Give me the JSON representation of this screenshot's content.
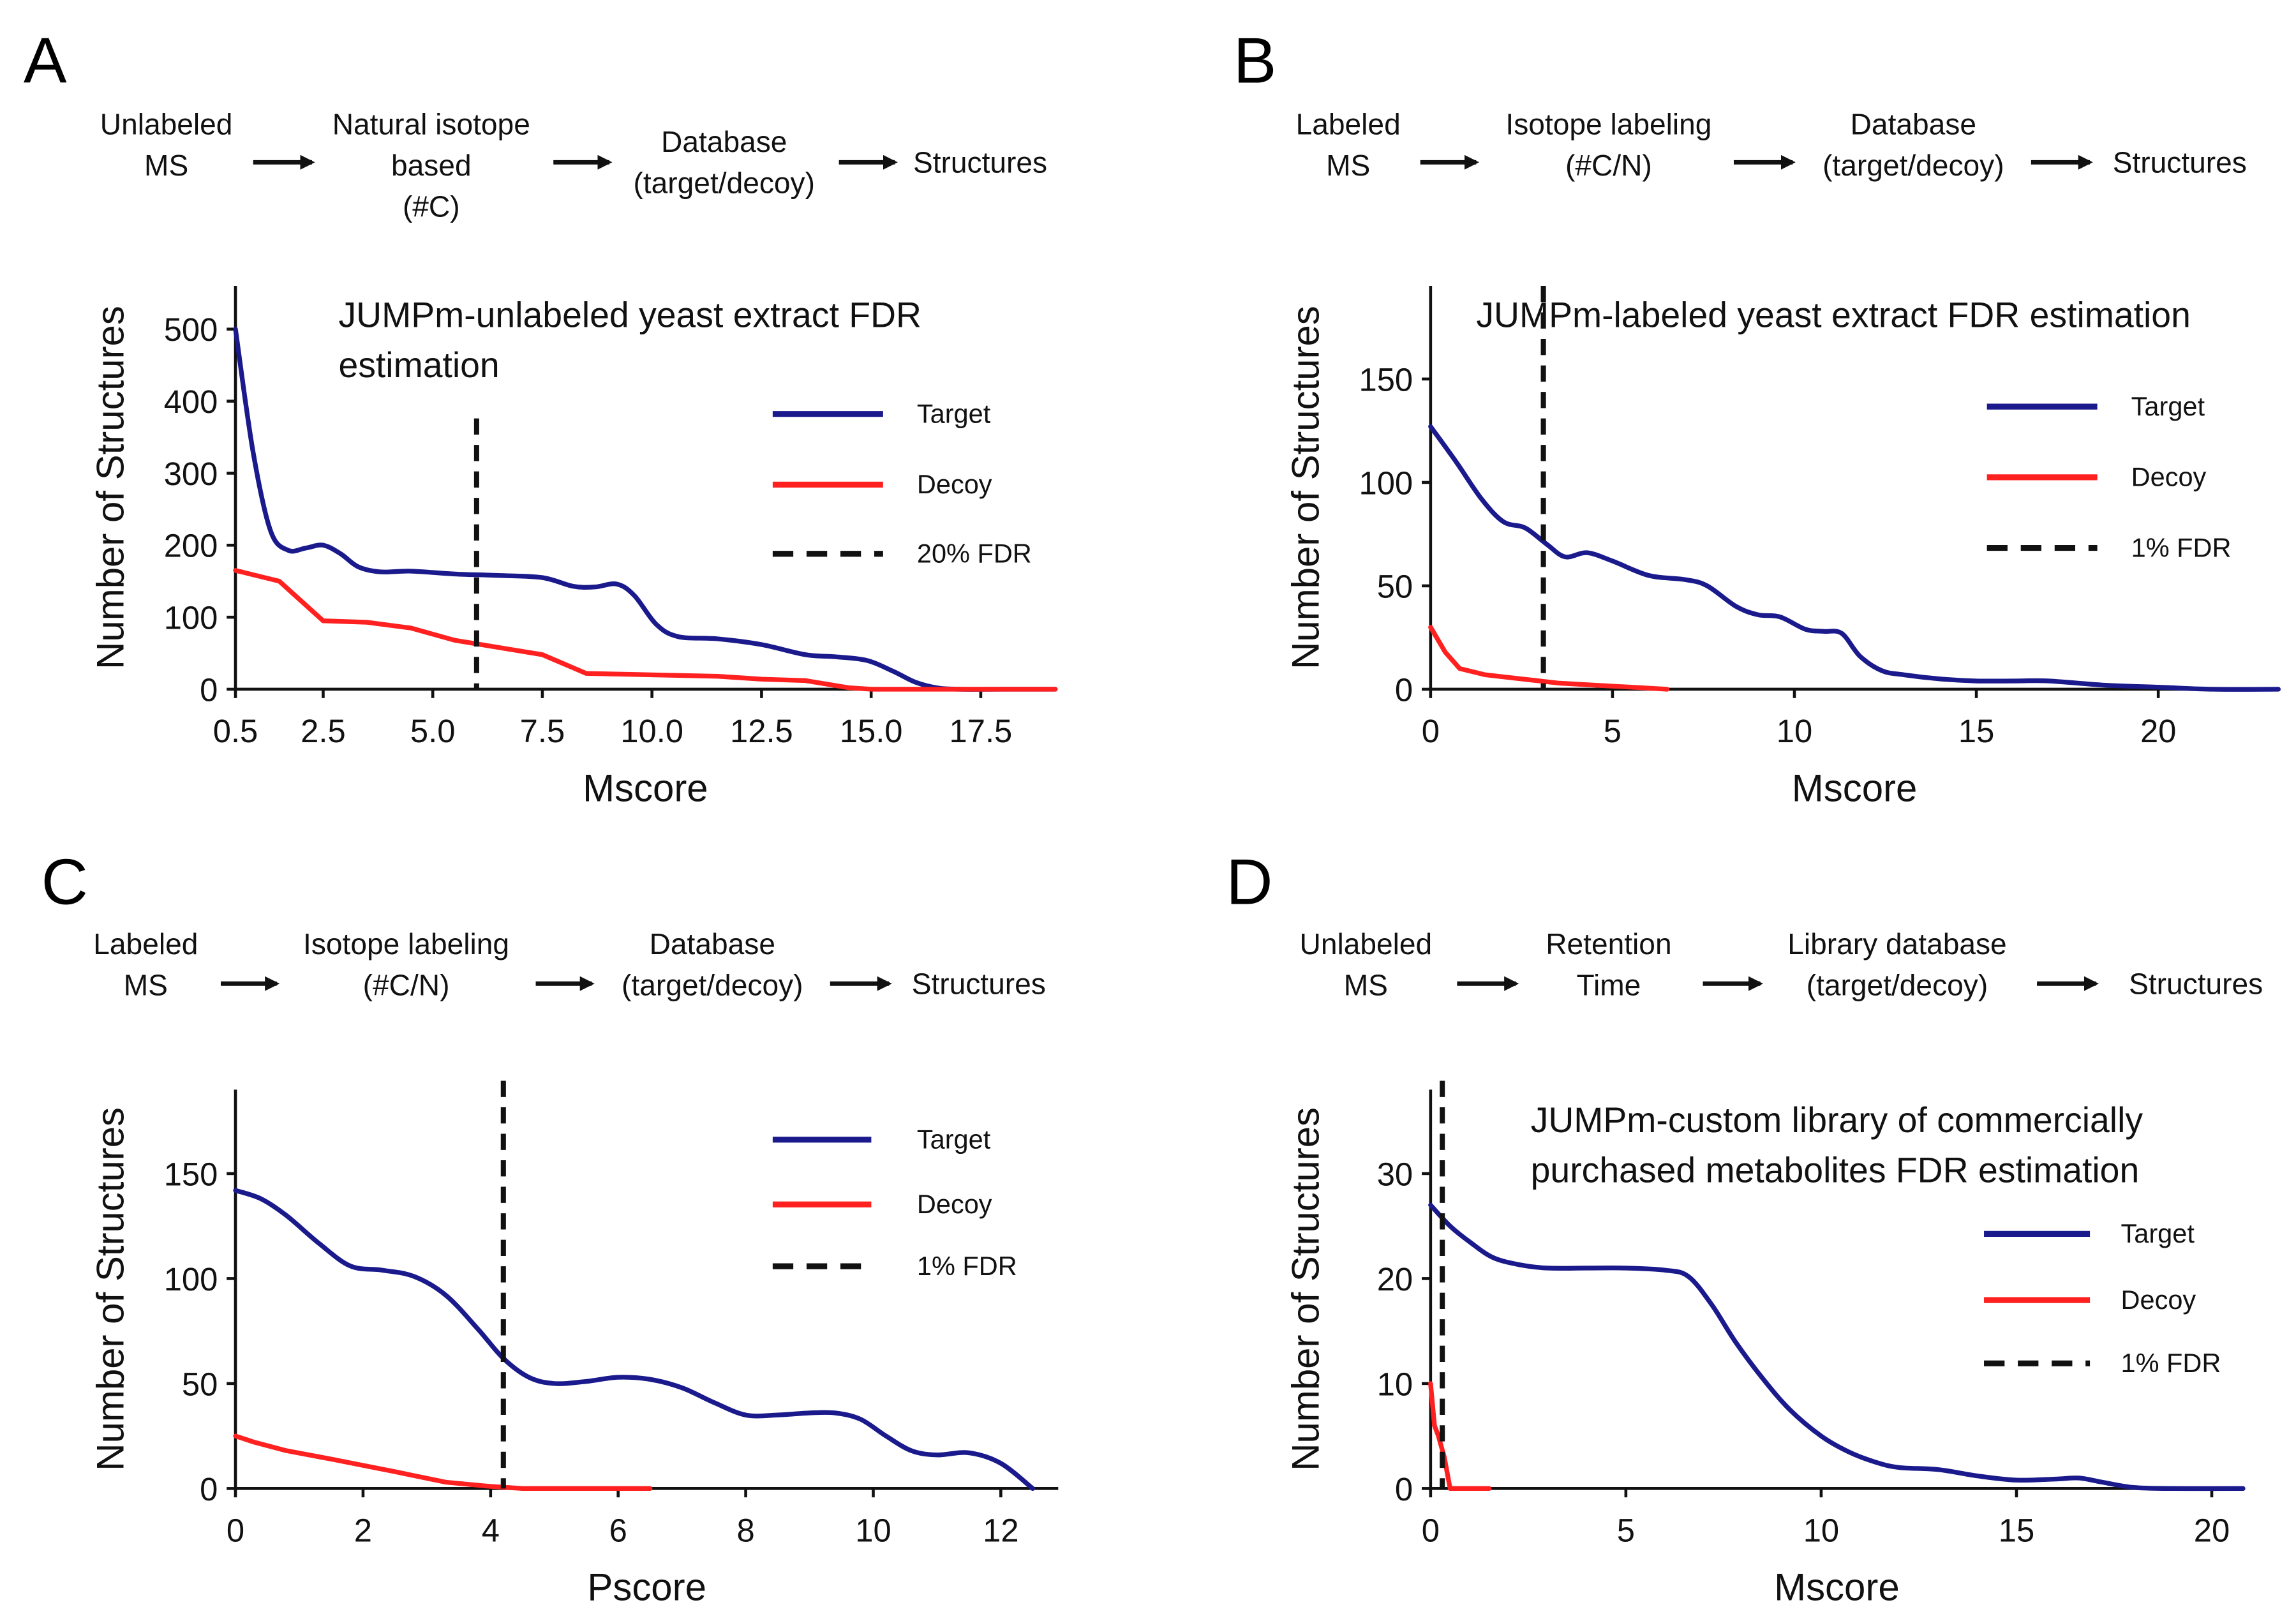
{
  "panels": [
    {
      "letter": "A",
      "workflow": [
        {
          "lines": [
            "Unlabeled",
            "MS"
          ]
        },
        {
          "lines": [
            "Natural isotope",
            "based",
            "(#C)"
          ]
        },
        {
          "lines": [
            "Database",
            "(target/decoy)"
          ]
        },
        {
          "lines": [
            "Structures"
          ]
        }
      ],
      "chart_data": {
        "type": "line",
        "title": [
          "JUMPm-unlabeled yeast extract FDR",
          "estimation"
        ],
        "xlabel": "Mscore",
        "ylabel": "Number of Structures",
        "xlim": [
          0.5,
          19.2
        ],
        "ylim": [
          0,
          560
        ],
        "xticks": [
          0.5,
          2.5,
          5.0,
          7.5,
          10.0,
          12.5,
          15.0,
          17.5
        ],
        "xtick_labels": [
          "0.5",
          "2.5",
          "5.0",
          "7.5",
          "10.0",
          "12.5",
          "15.0",
          "17.5"
        ],
        "yticks": [
          0,
          100,
          200,
          300,
          400,
          500
        ],
        "ytick_labels": [
          "0",
          "100",
          "200",
          "300",
          "400",
          "500"
        ],
        "threshold": 6.0,
        "series": [
          {
            "name": "Target",
            "color": "#1a1a8c",
            "smooth": true,
            "x": [
              0.5,
              0.9,
              1.3,
              1.7,
              2.1,
              2.5,
              2.9,
              3.3,
              3.8,
              4.5,
              5.5,
              6.5,
              7.5,
              8.2,
              8.7,
              9.2,
              9.6,
              10.1,
              10.6,
              11.5,
              12.5,
              13.5,
              14.2,
              14.9,
              15.5,
              16.0,
              16.5,
              17.0,
              18.0,
              19.2
            ],
            "y": [
              500,
              330,
              220,
              193,
              196,
              200,
              188,
              170,
              163,
              164,
              160,
              158,
              155,
              143,
              142,
              146,
              130,
              90,
              73,
              70,
              62,
              48,
              45,
              40,
              25,
              10,
              2,
              0,
              0,
              0
            ]
          },
          {
            "name": "Decoy",
            "color": "#ff2020",
            "smooth": false,
            "x": [
              0.5,
              1.5,
              2.5,
              3.5,
              4.5,
              5.5,
              6.5,
              7.5,
              8.5,
              10.0,
              11.5,
              12.5,
              13.5,
              14.5,
              15.0,
              16.0,
              19.2
            ],
            "y": [
              165,
              150,
              95,
              93,
              85,
              68,
              58,
              48,
              22,
              20,
              18,
              14,
              12,
              2,
              0,
              0,
              0
            ]
          }
        ],
        "legend": [
          {
            "label": "Target",
            "style": "solid",
            "color": "#1a1a8c"
          },
          {
            "label": "Decoy",
            "style": "solid",
            "color": "#ff2020"
          },
          {
            "label": "20% FDR",
            "style": "dashed",
            "color": "#111111"
          }
        ]
      }
    },
    {
      "letter": "B",
      "workflow": [
        {
          "lines": [
            "Labeled",
            "MS"
          ]
        },
        {
          "lines": [
            "Isotope labeling",
            "(#C/N)"
          ]
        },
        {
          "lines": [
            "Database",
            "(target/decoy)"
          ]
        },
        {
          "lines": [
            "Structures"
          ]
        }
      ],
      "chart_data": {
        "type": "line",
        "title": [
          "JUMPm-labeled yeast extract FDR estimation"
        ],
        "xlabel": "Mscore",
        "ylabel": "Number of Structures",
        "xlim": [
          0,
          23.3
        ],
        "ylim": [
          0,
          195
        ],
        "xticks": [
          0,
          5,
          10,
          15,
          20
        ],
        "xtick_labels": [
          "0",
          "5",
          "10",
          "15",
          "20"
        ],
        "yticks": [
          0,
          50,
          100,
          150
        ],
        "ytick_labels": [
          "0",
          "50",
          "100",
          "150"
        ],
        "threshold": 3.1,
        "series": [
          {
            "name": "Target",
            "color": "#1a1a8c",
            "smooth": true,
            "x": [
              0,
              0.7,
              1.4,
              2.0,
              2.6,
              3.2,
              3.7,
              4.3,
              5.0,
              6.0,
              7.0,
              7.6,
              8.4,
              9.0,
              9.6,
              10.3,
              10.8,
              11.3,
              11.8,
              12.4,
              13.0,
              14.0,
              15.0,
              16.0,
              17.0,
              18.5,
              20.0,
              21.5,
              23.3
            ],
            "y": [
              127,
              110,
              92,
              81,
              78,
              70,
              64,
              66,
              62,
              55,
              53,
              50,
              40,
              36,
              35,
              29,
              28,
              27,
              16,
              9,
              7,
              5,
              4,
              4,
              4,
              2,
              1,
              0,
              0
            ]
          },
          {
            "name": "Decoy",
            "color": "#ff2020",
            "smooth": false,
            "x": [
              0,
              0.4,
              0.8,
              1.5,
              2.5,
              3.5,
              4.5,
              5.5,
              6.5
            ],
            "y": [
              30,
              18,
              10,
              7,
              5,
              3,
              2,
              1,
              0
            ]
          }
        ],
        "legend": [
          {
            "label": "Target",
            "style": "solid",
            "color": "#1a1a8c"
          },
          {
            "label": "Decoy",
            "style": "solid",
            "color": "#ff2020"
          },
          {
            "label": "1% FDR",
            "style": "dashed",
            "color": "#111111"
          }
        ]
      }
    },
    {
      "letter": "C",
      "workflow": [
        {
          "lines": [
            "Labeled",
            "MS"
          ]
        },
        {
          "lines": [
            "Isotope labeling",
            "(#C/N)"
          ]
        },
        {
          "lines": [
            "Database",
            "(target/decoy)"
          ]
        },
        {
          "lines": [
            "Structures"
          ]
        }
      ],
      "chart_data": {
        "type": "line",
        "title": [],
        "xlabel": "Pscore",
        "ylabel": "Number of Structures",
        "xlim": [
          0,
          12.9
        ],
        "ylim": [
          0,
          190
        ],
        "xticks": [
          0,
          2,
          4,
          6,
          8,
          10,
          12
        ],
        "xtick_labels": [
          "0",
          "2",
          "4",
          "6",
          "8",
          "10",
          "12"
        ],
        "yticks": [
          0,
          50,
          100,
          150
        ],
        "ytick_labels": [
          "0",
          "50",
          "100",
          "150"
        ],
        "threshold": 4.2,
        "series": [
          {
            "name": "Target",
            "color": "#1a1a8c",
            "smooth": true,
            "x": [
              0,
              0.4,
              0.8,
              1.3,
              1.8,
              2.3,
              2.8,
              3.3,
              3.8,
              4.2,
              4.6,
              5.0,
              5.5,
              6.0,
              6.5,
              7.0,
              7.5,
              8.0,
              8.5,
              9.0,
              9.4,
              9.8,
              10.2,
              10.6,
              11.0,
              11.5,
              12.0,
              12.5
            ],
            "y": [
              142,
              138,
              130,
              117,
              106,
              104,
              101,
              92,
              76,
              62,
              53,
              50,
              51,
              53,
              52,
              48,
              41,
              35,
              35,
              36,
              36,
              33,
              25,
              18,
              16,
              17,
              12,
              0
            ]
          },
          {
            "name": "Decoy",
            "color": "#ff2020",
            "smooth": false,
            "x": [
              0,
              0.3,
              0.8,
              1.5,
              2.5,
              3.3,
              4.0,
              4.5,
              6.5
            ],
            "y": [
              25,
              22,
              18,
              14,
              8,
              3,
              1,
              0,
              0
            ]
          }
        ],
        "legend": [
          {
            "label": "Target",
            "style": "solid",
            "color": "#1a1a8c"
          },
          {
            "label": "Decoy",
            "style": "solid",
            "color": "#ff2020"
          },
          {
            "label": "1% FDR",
            "style": "dashed",
            "color": "#111111"
          }
        ]
      }
    },
    {
      "letter": "D",
      "workflow": [
        {
          "lines": [
            "Unlabeled",
            "MS"
          ]
        },
        {
          "lines": [
            "Retention",
            "Time"
          ]
        },
        {
          "lines": [
            "Library database",
            "(target/decoy)"
          ]
        },
        {
          "lines": [
            "Structures"
          ]
        }
      ],
      "chart_data": {
        "type": "line",
        "title": [
          "JUMPm-custom library of commercially",
          "purchased metabolites FDR estimation"
        ],
        "xlabel": "Mscore",
        "ylabel": "Number of Structures",
        "xlim": [
          0,
          20.8
        ],
        "ylim": [
          0,
          38
        ],
        "xticks": [
          0,
          5,
          10,
          15,
          20
        ],
        "xtick_labels": [
          "0",
          "5",
          "10",
          "15",
          "20"
        ],
        "yticks": [
          0,
          10,
          20,
          30
        ],
        "ytick_labels": [
          "0",
          "10",
          "20",
          "30"
        ],
        "threshold": 0.3,
        "series": [
          {
            "name": "Target",
            "color": "#1a1a8c",
            "smooth": true,
            "x": [
              0,
              0.5,
              1.0,
              1.6,
              2.3,
              3.0,
              4.0,
              5.0,
              6.0,
              6.6,
              7.2,
              7.8,
              8.5,
              9.2,
              10.0,
              10.7,
              11.4,
              12.0,
              13.0,
              14.0,
              15.0,
              16.0,
              16.6,
              17.2,
              18.0,
              19.0,
              20.8
            ],
            "y": [
              27,
              25,
              23.5,
              22,
              21.3,
              21,
              21,
              21,
              20.8,
              20.2,
              17.5,
              14,
              10.5,
              7.5,
              5,
              3.5,
              2.5,
              2,
              1.8,
              1.2,
              0.8,
              0.9,
              1,
              0.6,
              0.1,
              0,
              0
            ]
          },
          {
            "name": "Decoy",
            "color": "#ff2020",
            "smooth": false,
            "x": [
              0,
              0.1,
              0.2,
              0.35,
              0.5,
              1.5
            ],
            "y": [
              10,
              6,
              5,
              3,
              0,
              0
            ]
          }
        ],
        "legend": [
          {
            "label": "Target",
            "style": "solid",
            "color": "#1a1a8c"
          },
          {
            "label": "Decoy",
            "style": "solid",
            "color": "#ff2020"
          },
          {
            "label": "1% FDR",
            "style": "dashed",
            "color": "#111111"
          }
        ]
      }
    }
  ]
}
